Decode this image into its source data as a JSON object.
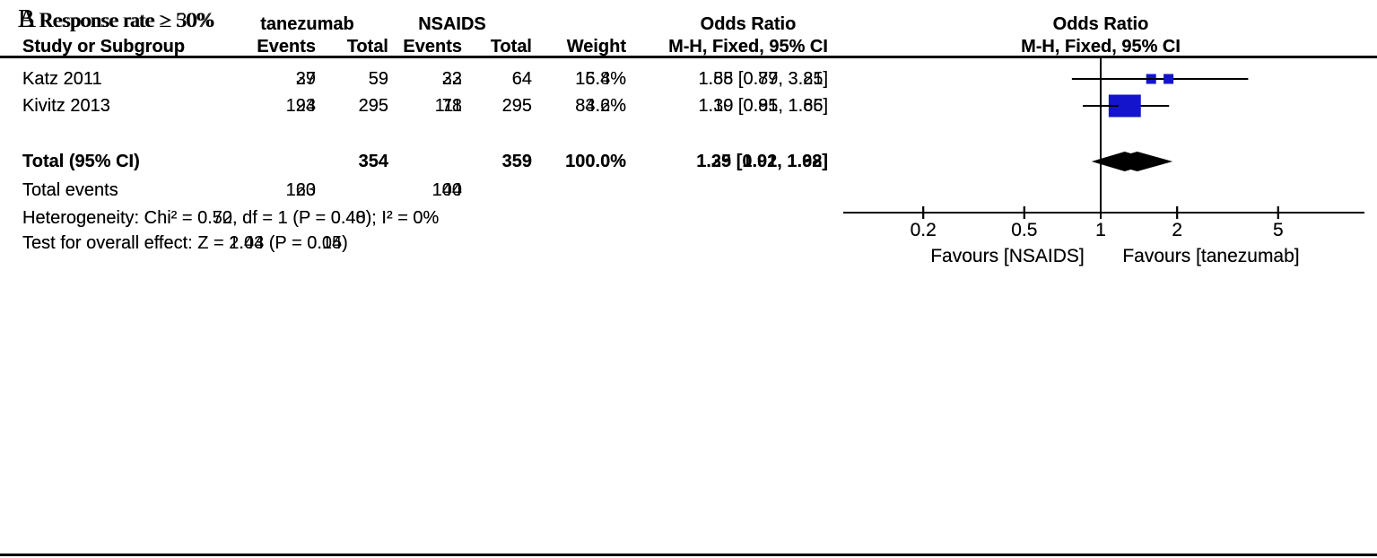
{
  "figure": {
    "square_color": "#1414CC",
    "diamond_color": "#000000",
    "line_color": "#000000"
  },
  "panels": [
    {
      "label": "A",
      "title": "Response rate ≥ 30%",
      "group1": "tanezumab",
      "group2": "NSAIDS",
      "or_header": "Odds Ratio",
      "mh_header": "M-H, Fixed, 95% CI",
      "col_study": "Study or Subgroup",
      "col_events": "Events",
      "col_total": "Total",
      "col_weight": "Weight",
      "studies": [
        {
          "name": "Katz 2011",
          "events1": "37",
          "total1": "59",
          "events2": "33",
          "total2": "64",
          "weight": "15.4%",
          "or_text": "1.58 [0.77, 3.25]",
          "or": 1.58,
          "lo": 0.77,
          "hi": 3.25,
          "weight_pct": 15.4
        },
        {
          "name": "Kivitz 2013",
          "events1": "123",
          "total1": "295",
          "events2": "111",
          "total2": "295",
          "weight": "84.6%",
          "or_text": "1.19 [0.85, 1.65]",
          "or": 1.19,
          "lo": 0.85,
          "hi": 1.65,
          "weight_pct": 84.6
        }
      ],
      "total": {
        "label": "Total (95% CI)",
        "total1": "354",
        "total2": "359",
        "weight": "100.0%",
        "or_text": "1.25 [0.92, 1.68]",
        "or": 1.25,
        "lo": 0.92,
        "hi": 1.68
      },
      "total_events": {
        "label": "Total events",
        "v1": "160",
        "v2": "144"
      },
      "heterogeneity": "Heterogeneity: Chi² = 0.50, df = 1 (P = 0.48); I² = 0%",
      "overall_effect": "Test for overall effect: Z = 1.44 (P = 0.15)",
      "axis_ticks": [
        0.2,
        0.5,
        1,
        2,
        5
      ],
      "tick_labels": [
        "0.2",
        "0.5",
        "1",
        "2",
        "5"
      ],
      "favours_left": "Favours [NSAIDS]",
      "favours_right": "Favours [tanezumab]"
    },
    {
      "label": "B",
      "title": "Response rate ≥ 50%",
      "group1": "tanezumab",
      "group2": "NSAIDS",
      "or_header": "Odds Ratio",
      "mh_header": "M-H, Fixed, 95% CI",
      "col_study": "Study or Subgroup",
      "col_events": "Events",
      "col_total": "Total",
      "col_weight": "Weight",
      "studies": [
        {
          "name": "Katz 2011",
          "events1": "29",
          "total1": "59",
          "events2": "22",
          "total2": "64",
          "weight": "16.8%",
          "or_text": "1.85 [0.89, 3.81]",
          "or": 1.85,
          "lo": 0.89,
          "hi": 3.81,
          "weight_pct": 16.8
        },
        {
          "name": "Kivitz 2013",
          "events1": "94",
          "total1": "295",
          "events2": "78",
          "total2": "295",
          "weight": "83.2%",
          "or_text": "1.30 [0.91, 1.86]",
          "or": 1.3,
          "lo": 0.91,
          "hi": 1.86,
          "weight_pct": 83.2
        }
      ],
      "total": {
        "label": "Total (95% CI)",
        "total1": "354",
        "total2": "359",
        "weight": "100.0%",
        "or_text": "1.39 [1.01, 1.92]",
        "or": 1.39,
        "lo": 1.01,
        "hi": 1.92
      },
      "total_events": {
        "label": "Total events",
        "v1": "123",
        "v2": "100"
      },
      "heterogeneity": "Heterogeneity: Chi² = 0.72, df = 1 (P = 0.40); I² = 0%",
      "overall_effect": "Test for overall effect: Z = 2.03 (P = 0.04)",
      "axis_ticks": [
        0.2,
        0.5,
        1,
        2,
        5
      ],
      "tick_labels": [
        "0.2",
        "0.5",
        "1",
        "2",
        "5"
      ],
      "favours_left": "Favours [NSAIDS]",
      "favours_right": "Favours [tanezumab]"
    }
  ],
  "chart_data": [
    {
      "type": "scatter",
      "subtype": "forest-plot",
      "panel": "A",
      "title": "Response rate ≥ 30%",
      "effect_measure": "Odds Ratio (M-H, Fixed, 95% CI)",
      "x_scale": "log",
      "x_ticks": [
        0.2,
        0.5,
        1,
        2,
        5
      ],
      "xlabel_left": "Favours [NSAIDS]",
      "xlabel_right": "Favours [tanezumab]",
      "studies": [
        {
          "study": "Katz 2011",
          "tanezumab_events": 37,
          "tanezumab_total": 59,
          "nsaids_events": 33,
          "nsaids_total": 64,
          "weight_pct": 15.4,
          "or": 1.58,
          "ci_low": 0.77,
          "ci_high": 3.25
        },
        {
          "study": "Kivitz 2013",
          "tanezumab_events": 123,
          "tanezumab_total": 295,
          "nsaids_events": 111,
          "nsaids_total": 295,
          "weight_pct": 84.6,
          "or": 1.19,
          "ci_low": 0.85,
          "ci_high": 1.65
        }
      ],
      "total": {
        "tanezumab_total": 354,
        "nsaids_total": 359,
        "tanezumab_events": 160,
        "nsaids_events": 144,
        "weight_pct": 100.0,
        "or": 1.25,
        "ci_low": 0.92,
        "ci_high": 1.68
      },
      "heterogeneity": "Chi² = 0.50, df = 1 (P = 0.48); I² = 0%",
      "overall_effect": "Z = 1.44 (P = 0.15)"
    },
    {
      "type": "scatter",
      "subtype": "forest-plot",
      "panel": "B",
      "title": "Response rate ≥ 50%",
      "effect_measure": "Odds Ratio (M-H, Fixed, 95% CI)",
      "x_scale": "log",
      "x_ticks": [
        0.2,
        0.5,
        1,
        2,
        5
      ],
      "xlabel_left": "Favours [NSAIDS]",
      "xlabel_right": "Favours [tanezumab]",
      "studies": [
        {
          "study": "Katz 2011",
          "tanezumab_events": 29,
          "tanezumab_total": 59,
          "nsaids_events": 22,
          "nsaids_total": 64,
          "weight_pct": 16.8,
          "or": 1.85,
          "ci_low": 0.89,
          "ci_high": 3.81
        },
        {
          "study": "Kivitz 2013",
          "tanezumab_events": 94,
          "tanezumab_total": 295,
          "nsaids_events": 78,
          "nsaids_total": 295,
          "weight_pct": 83.2,
          "or": 1.3,
          "ci_low": 0.91,
          "ci_high": 1.86
        }
      ],
      "total": {
        "tanezumab_total": 354,
        "nsaids_total": 359,
        "tanezumab_events": 123,
        "nsaids_events": 100,
        "weight_pct": 100.0,
        "or": 1.39,
        "ci_low": 1.01,
        "ci_high": 1.92
      },
      "heterogeneity": "Chi² = 0.72, df = 1 (P = 0.40); I² = 0%",
      "overall_effect": "Z = 2.03 (P = 0.04)"
    }
  ]
}
